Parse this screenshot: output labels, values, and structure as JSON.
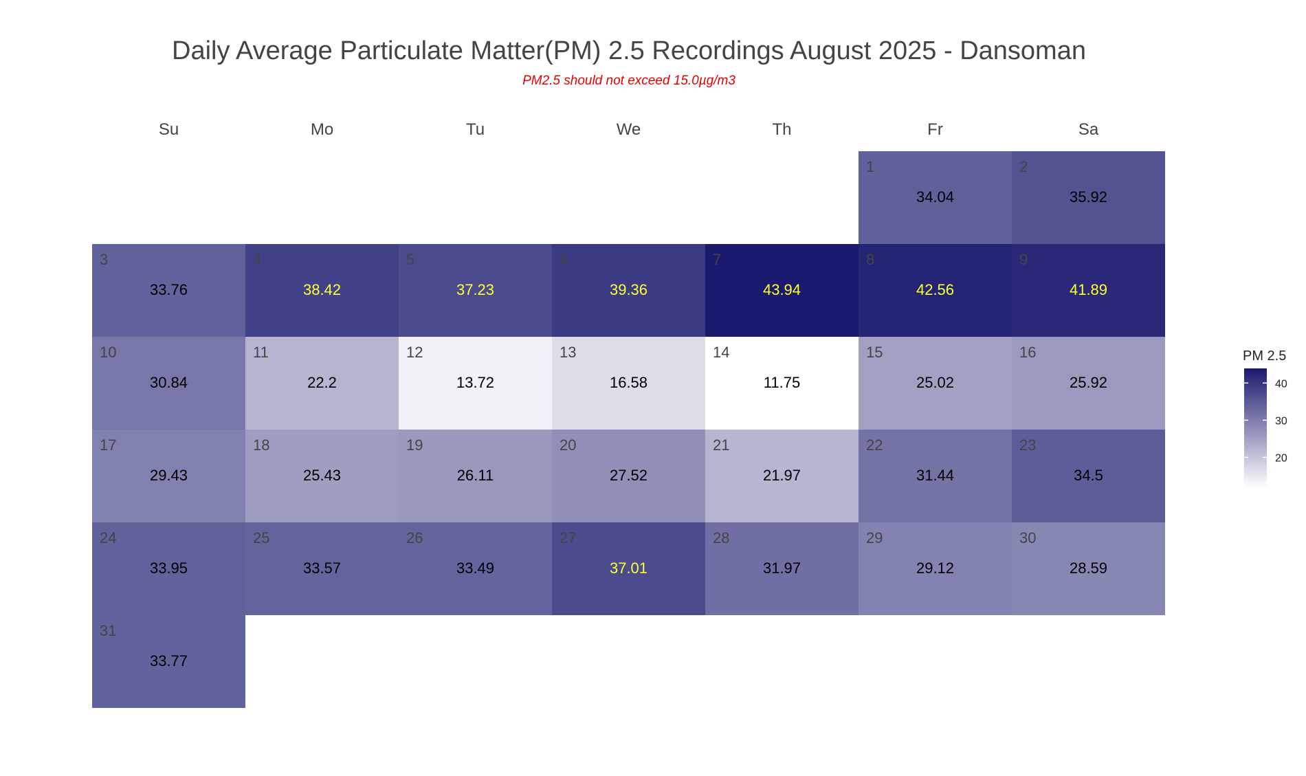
{
  "chart_data": {
    "type": "heatmap",
    "title": "Daily Average Particulate Matter(PM) 2.5 Recordings August 2025 -  Dansoman",
    "subtitle": "PM2.5 should not exceed 15.0µg/m3",
    "weekdays": [
      "Su",
      "Mo",
      "Tu",
      "We",
      "Th",
      "Fr",
      "Sa"
    ],
    "first_weekday_index": 5,
    "days": [
      {
        "day": "1",
        "value": 34.04,
        "label": "34.04"
      },
      {
        "day": "2",
        "value": 35.92,
        "label": "35.92"
      },
      {
        "day": "3",
        "value": 33.76,
        "label": "33.76"
      },
      {
        "day": "4",
        "value": 38.42,
        "label": "38.42"
      },
      {
        "day": "5",
        "value": 37.23,
        "label": "37.23"
      },
      {
        "day": "6",
        "value": 39.36,
        "label": "39.36"
      },
      {
        "day": "7",
        "value": 43.94,
        "label": "43.94"
      },
      {
        "day": "8",
        "value": 42.56,
        "label": "42.56"
      },
      {
        "day": "9",
        "value": 41.89,
        "label": "41.89"
      },
      {
        "day": "10",
        "value": 30.84,
        "label": "30.84"
      },
      {
        "day": "11",
        "value": 22.2,
        "label": "22.2"
      },
      {
        "day": "12",
        "value": 13.72,
        "label": "13.72"
      },
      {
        "day": "13",
        "value": 16.58,
        "label": "16.58"
      },
      {
        "day": "14",
        "value": 11.75,
        "label": "11.75"
      },
      {
        "day": "15",
        "value": 25.02,
        "label": "25.02"
      },
      {
        "day": "16",
        "value": 25.92,
        "label": "25.92"
      },
      {
        "day": "17",
        "value": 29.43,
        "label": "29.43"
      },
      {
        "day": "18",
        "value": 25.43,
        "label": "25.43"
      },
      {
        "day": "19",
        "value": 26.11,
        "label": "26.11"
      },
      {
        "day": "20",
        "value": 27.52,
        "label": "27.52"
      },
      {
        "day": "21",
        "value": 21.97,
        "label": "21.97"
      },
      {
        "day": "22",
        "value": 31.44,
        "label": "31.44"
      },
      {
        "day": "23",
        "value": 34.5,
        "label": "34.5"
      },
      {
        "day": "24",
        "value": 33.95,
        "label": "33.95"
      },
      {
        "day": "25",
        "value": 33.57,
        "label": "33.57"
      },
      {
        "day": "26",
        "value": 33.49,
        "label": "33.49"
      },
      {
        "day": "27",
        "value": 37.01,
        "label": "37.01"
      },
      {
        "day": "28",
        "value": 31.97,
        "label": "31.97"
      },
      {
        "day": "29",
        "value": 29.12,
        "label": "29.12"
      },
      {
        "day": "30",
        "value": 28.59,
        "label": "28.59"
      },
      {
        "day": "31",
        "value": 33.77,
        "label": "33.77"
      }
    ],
    "value_range": [
      11.75,
      43.94
    ],
    "highlight_threshold": 37,
    "colors": {
      "low": "#ffffff",
      "high": "#1a1a6e",
      "label_normal": "#000000",
      "label_high": "#ffff33",
      "subtitle": "#e60000"
    },
    "legend": {
      "title": "PM 2.5",
      "ticks": [
        {
          "value": 20,
          "label": "20"
        },
        {
          "value": 30,
          "label": "30"
        },
        {
          "value": 40,
          "label": "40"
        }
      ],
      "placement": "right"
    }
  }
}
